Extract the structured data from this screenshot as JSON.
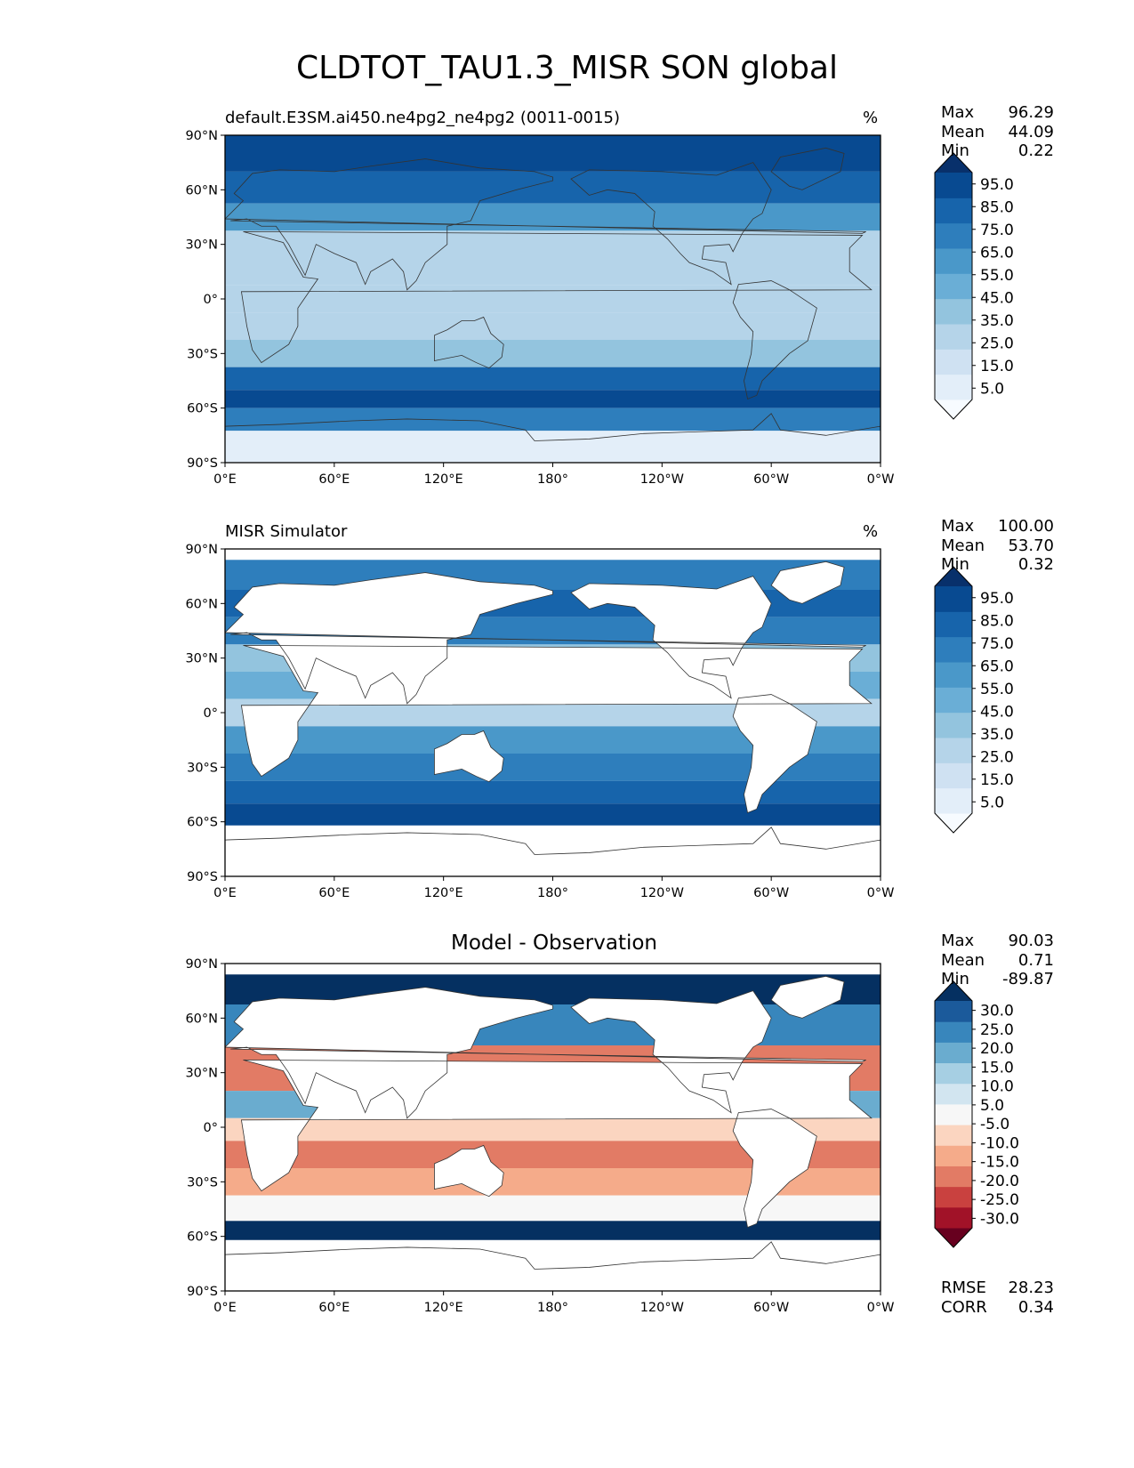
{
  "title": "CLDTOT_TAU1.3_MISR SON global",
  "panels": [
    {
      "id": "test",
      "left_title": "default.E3SM.ai450.ne4pg2_ne4pg2 (0011-0015)",
      "center_title": "",
      "unit": "%",
      "stats": [
        {
          "label": "Max",
          "value": "96.29"
        },
        {
          "label": "Mean",
          "value": "44.09"
        },
        {
          "label": "Min",
          "value": "0.22"
        }
      ],
      "extra_stats": [],
      "colorbar": {
        "ticks": [
          "95.0",
          "85.0",
          "75.0",
          "65.0",
          "55.0",
          "45.0",
          "35.0",
          "25.0",
          "15.0",
          "5.0"
        ],
        "colors": [
          "#f7fbff",
          "#e3eef9",
          "#cfe1f2",
          "#b5d4e9",
          "#93c4de",
          "#6aaed6",
          "#4a98c9",
          "#2e7ebc",
          "#1764ab",
          "#084a91",
          "#08306b"
        ]
      }
    },
    {
      "id": "reference",
      "left_title": "MISR Simulator",
      "center_title": "",
      "unit": "%",
      "stats": [
        {
          "label": "Max",
          "value": "100.00"
        },
        {
          "label": "Mean",
          "value": "53.70"
        },
        {
          "label": "Min",
          "value": "0.32"
        }
      ],
      "extra_stats": [],
      "colorbar": {
        "ticks": [
          "95.0",
          "85.0",
          "75.0",
          "65.0",
          "55.0",
          "45.0",
          "35.0",
          "25.0",
          "15.0",
          "5.0"
        ],
        "colors": [
          "#f7fbff",
          "#e3eef9",
          "#cfe1f2",
          "#b5d4e9",
          "#93c4de",
          "#6aaed6",
          "#4a98c9",
          "#2e7ebc",
          "#1764ab",
          "#084a91",
          "#08306b"
        ]
      }
    },
    {
      "id": "diff",
      "left_title": "",
      "center_title": "Model - Observation",
      "unit": "",
      "stats": [
        {
          "label": "Max",
          "value": "90.03"
        },
        {
          "label": "Mean",
          "value": "0.71"
        },
        {
          "label": "Min",
          "value": "-89.87"
        }
      ],
      "extra_stats": [
        {
          "label": "RMSE",
          "value": "28.23"
        },
        {
          "label": "CORR",
          "value": "0.34"
        }
      ],
      "colorbar": {
        "ticks": [
          "30.0",
          "25.0",
          "20.0",
          "15.0",
          "10.0",
          "5.0",
          "-5.0",
          "-10.0",
          "-15.0",
          "-20.0",
          "-25.0",
          "-30.0"
        ],
        "colors": [
          "#67001f",
          "#a11228",
          "#c9413f",
          "#e27b65",
          "#f5ab8a",
          "#fbd5c0",
          "#f7f7f7",
          "#d2e5f0",
          "#a6cfe3",
          "#6aaccf",
          "#3886bc",
          "#1b5a9b",
          "#053061"
        ]
      }
    }
  ],
  "axes": {
    "x_ticks": [
      "0°E",
      "60°E",
      "120°E",
      "180°",
      "120°W",
      "60°W",
      "0°W"
    ],
    "y_ticks": [
      "90°N",
      "60°N",
      "30°N",
      "0°",
      "30°S",
      "60°S",
      "90°S"
    ]
  },
  "chart_data": [
    {
      "type": "heatmap",
      "title": "default.E3SM.ai450.ne4pg2_ne4pg2 (0011-0015)",
      "xlim": [
        0,
        360
      ],
      "ylim": [
        -90,
        90
      ],
      "levels": [
        0,
        5,
        15,
        25,
        35,
        45,
        55,
        65,
        75,
        85,
        95,
        100
      ],
      "zones": [
        {
          "lat": 80,
          "value": 85
        },
        {
          "lat": 60,
          "value": 75
        },
        {
          "lat": 45,
          "value": 60
        },
        {
          "lat": 30,
          "value": 30
        },
        {
          "lat": 15,
          "value": 25
        },
        {
          "lat": 0,
          "value": 30
        },
        {
          "lat": -15,
          "value": 25
        },
        {
          "lat": -30,
          "value": 35
        },
        {
          "lat": -45,
          "value": 75
        },
        {
          "lat": -55,
          "value": 88
        },
        {
          "lat": -65,
          "value": 70
        },
        {
          "lat": -80,
          "value": 10
        }
      ]
    },
    {
      "type": "heatmap",
      "title": "MISR Simulator",
      "xlim": [
        0,
        360
      ],
      "ylim": [
        -90,
        90
      ],
      "levels": [
        0,
        5,
        15,
        25,
        35,
        45,
        55,
        65,
        75,
        85,
        95,
        100
      ],
      "zones": [
        {
          "lat": 75,
          "value": 70
        },
        {
          "lat": 60,
          "value": 75
        },
        {
          "lat": 45,
          "value": 65
        },
        {
          "lat": 30,
          "value": 40
        },
        {
          "lat": 15,
          "value": 45
        },
        {
          "lat": 0,
          "value": 30
        },
        {
          "lat": -15,
          "value": 55
        },
        {
          "lat": -30,
          "value": 65
        },
        {
          "lat": -45,
          "value": 80
        },
        {
          "lat": -55,
          "value": 88
        }
      ]
    },
    {
      "type": "heatmap",
      "title": "Model - Observation",
      "xlim": [
        0,
        360
      ],
      "ylim": [
        -90,
        90
      ],
      "levels": [
        -100,
        -30,
        -25,
        -20,
        -15,
        -10,
        -5,
        5,
        10,
        15,
        20,
        25,
        30,
        100
      ],
      "zones": [
        {
          "lat": 75,
          "value": 30
        },
        {
          "lat": 60,
          "value": 20
        },
        {
          "lat": 30,
          "value": -20
        },
        {
          "lat": 10,
          "value": 15
        },
        {
          "lat": 0,
          "value": -10
        },
        {
          "lat": -15,
          "value": -20
        },
        {
          "lat": -30,
          "value": -15
        },
        {
          "lat": -45,
          "value": 0
        },
        {
          "lat": -58,
          "value": 30
        }
      ]
    }
  ]
}
